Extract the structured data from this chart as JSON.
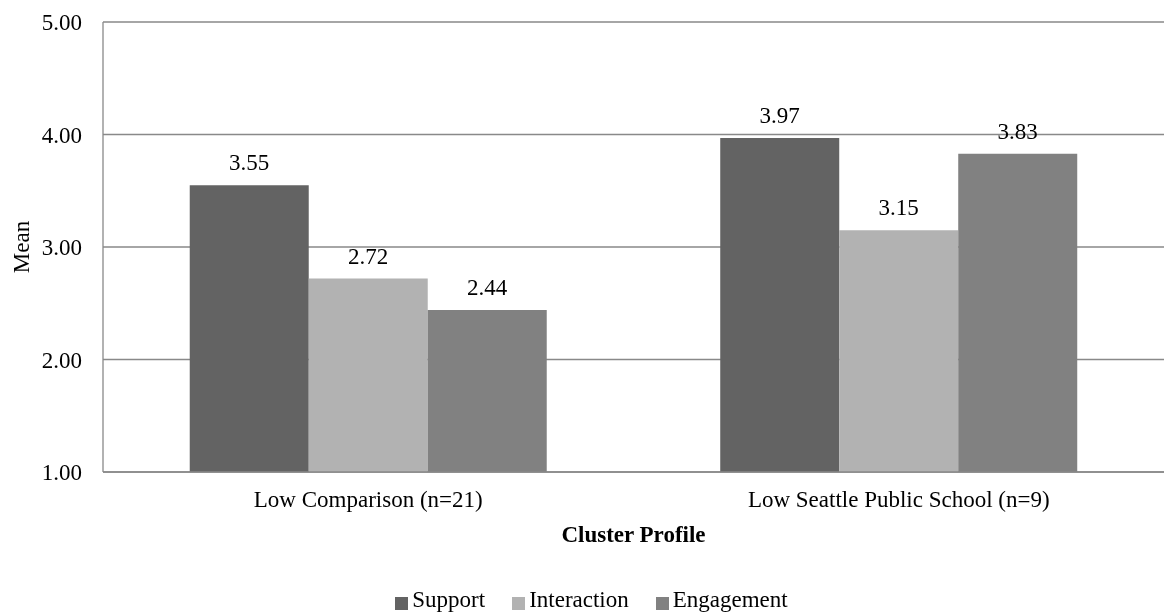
{
  "chart_data": {
    "type": "bar",
    "xlabel": "Cluster Profile",
    "ylabel": "Mean",
    "categories": [
      "Low Comparison (n=21)",
      "Low Seattle Public School (n=9)"
    ],
    "series": [
      {
        "name": "Support",
        "color": "#636363",
        "values": [
          3.55,
          3.97
        ]
      },
      {
        "name": "Interaction",
        "color": "#b2b2b2",
        "values": [
          2.72,
          3.15
        ]
      },
      {
        "name": "Engagement",
        "color": "#818181",
        "values": [
          2.44,
          3.83
        ]
      }
    ],
    "ylim": [
      1,
      5
    ],
    "yticks": [
      {
        "value": 1,
        "label": "1.00"
      },
      {
        "value": 2,
        "label": "2.00"
      },
      {
        "value": 3,
        "label": "3.00"
      },
      {
        "value": 4,
        "label": "4.00"
      },
      {
        "value": 5,
        "label": "5.00"
      }
    ],
    "grid": "y",
    "legend": "bottom",
    "data_labels": true
  }
}
